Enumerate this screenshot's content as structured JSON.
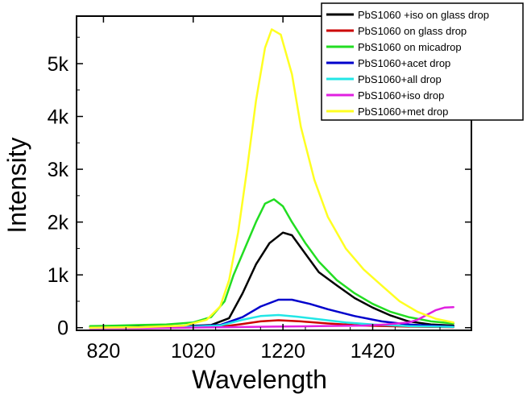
{
  "chart_data": {
    "type": "line",
    "title": "",
    "xlabel": "Wavelength",
    "ylabel": "Intensity",
    "xlim": [
      760,
      1640
    ],
    "ylim": [
      -50,
      5900
    ],
    "grid": false,
    "legend_position": "top-right",
    "x_ticks": [
      {
        "value": 820,
        "label": "820"
      },
      {
        "value": 1020,
        "label": "1020"
      },
      {
        "value": 1220,
        "label": "1220"
      },
      {
        "value": 1420,
        "label": "1420"
      }
    ],
    "y_ticks": [
      {
        "value": 0,
        "label": "0"
      },
      {
        "value": 1000,
        "label": "1k"
      },
      {
        "value": 2000,
        "label": "2k"
      },
      {
        "value": 3000,
        "label": "3k"
      },
      {
        "value": 4000,
        "label": "4k"
      },
      {
        "value": 5000,
        "label": "5k"
      }
    ],
    "series": [
      {
        "name": "PbS1060 +iso on glass drop",
        "color": "#000000",
        "points": [
          [
            790,
            10
          ],
          [
            900,
            20
          ],
          [
            1000,
            30
          ],
          [
            1060,
            50
          ],
          [
            1100,
            180
          ],
          [
            1130,
            650
          ],
          [
            1160,
            1200
          ],
          [
            1190,
            1600
          ],
          [
            1220,
            1800
          ],
          [
            1240,
            1750
          ],
          [
            1270,
            1400
          ],
          [
            1300,
            1050
          ],
          [
            1340,
            800
          ],
          [
            1380,
            560
          ],
          [
            1420,
            380
          ],
          [
            1460,
            230
          ],
          [
            1500,
            120
          ],
          [
            1550,
            60
          ],
          [
            1600,
            40
          ]
        ]
      },
      {
        "name": "PbS1060 on glass drop",
        "color": "#cc0000",
        "points": [
          [
            790,
            0
          ],
          [
            900,
            0
          ],
          [
            1000,
            5
          ],
          [
            1080,
            15
          ],
          [
            1130,
            70
          ],
          [
            1170,
            120
          ],
          [
            1210,
            140
          ],
          [
            1260,
            120
          ],
          [
            1320,
            80
          ],
          [
            1400,
            40
          ],
          [
            1500,
            20
          ],
          [
            1600,
            10
          ]
        ]
      },
      {
        "name": "PbS1060 on micadrop",
        "color": "#22dd22",
        "points": [
          [
            790,
            30
          ],
          [
            850,
            40
          ],
          [
            900,
            50
          ],
          [
            960,
            60
          ],
          [
            1020,
            100
          ],
          [
            1060,
            200
          ],
          [
            1090,
            500
          ],
          [
            1110,
            1000
          ],
          [
            1140,
            1600
          ],
          [
            1160,
            2000
          ],
          [
            1180,
            2350
          ],
          [
            1200,
            2430
          ],
          [
            1220,
            2300
          ],
          [
            1240,
            2000
          ],
          [
            1270,
            1600
          ],
          [
            1300,
            1250
          ],
          [
            1340,
            900
          ],
          [
            1380,
            650
          ],
          [
            1420,
            450
          ],
          [
            1460,
            300
          ],
          [
            1500,
            200
          ],
          [
            1550,
            120
          ],
          [
            1600,
            80
          ]
        ]
      },
      {
        "name": "PbS1060+acet drop",
        "color": "#0000cc",
        "points": [
          [
            790,
            0
          ],
          [
            900,
            10
          ],
          [
            1000,
            20
          ],
          [
            1080,
            50
          ],
          [
            1130,
            200
          ],
          [
            1170,
            400
          ],
          [
            1210,
            530
          ],
          [
            1240,
            530
          ],
          [
            1280,
            450
          ],
          [
            1320,
            350
          ],
          [
            1380,
            220
          ],
          [
            1440,
            120
          ],
          [
            1500,
            60
          ],
          [
            1600,
            20
          ]
        ]
      },
      {
        "name": "PbS1060+all drop",
        "color": "#22e6e6",
        "points": [
          [
            790,
            0
          ],
          [
            900,
            5
          ],
          [
            1000,
            15
          ],
          [
            1080,
            40
          ],
          [
            1130,
            150
          ],
          [
            1170,
            220
          ],
          [
            1210,
            240
          ],
          [
            1250,
            210
          ],
          [
            1300,
            160
          ],
          [
            1360,
            100
          ],
          [
            1420,
            60
          ],
          [
            1500,
            30
          ],
          [
            1600,
            15
          ]
        ]
      },
      {
        "name": "PbS1060+iso drop",
        "color": "#e020e0",
        "points": [
          [
            790,
            -10
          ],
          [
            900,
            -10
          ],
          [
            1000,
            0
          ],
          [
            1100,
            10
          ],
          [
            1200,
            20
          ],
          [
            1300,
            30
          ],
          [
            1400,
            40
          ],
          [
            1450,
            60
          ],
          [
            1500,
            100
          ],
          [
            1520,
            150
          ],
          [
            1540,
            240
          ],
          [
            1560,
            330
          ],
          [
            1580,
            380
          ],
          [
            1600,
            390
          ]
        ]
      },
      {
        "name": "PbS1060+met drop",
        "color": "#ffff22",
        "points": [
          [
            790,
            0
          ],
          [
            900,
            10
          ],
          [
            1000,
            40
          ],
          [
            1050,
            150
          ],
          [
            1080,
            400
          ],
          [
            1100,
            900
          ],
          [
            1120,
            1800
          ],
          [
            1140,
            3000
          ],
          [
            1160,
            4300
          ],
          [
            1180,
            5300
          ],
          [
            1195,
            5650
          ],
          [
            1215,
            5550
          ],
          [
            1240,
            4800
          ],
          [
            1260,
            3800
          ],
          [
            1290,
            2800
          ],
          [
            1320,
            2100
          ],
          [
            1360,
            1500
          ],
          [
            1400,
            1100
          ],
          [
            1440,
            800
          ],
          [
            1480,
            500
          ],
          [
            1520,
            300
          ],
          [
            1560,
            170
          ],
          [
            1600,
            100
          ]
        ]
      }
    ]
  }
}
